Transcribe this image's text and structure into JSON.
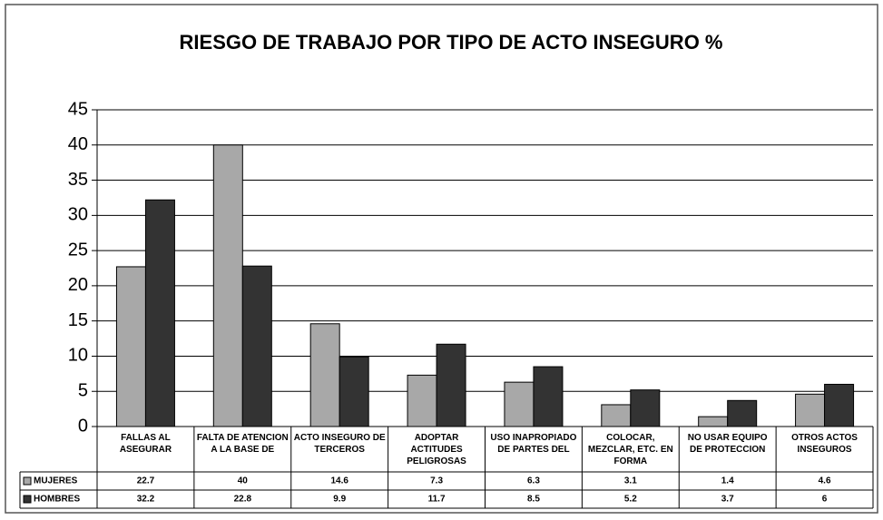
{
  "chart_data": {
    "type": "bar",
    "title": "RIESGO DE TRABAJO POR TIPO DE  ACTO INSEGURO  %",
    "categories": [
      "FALLAS AL ASEGURAR",
      "FALTA DE ATENCION A LA BASE DE",
      "ACTO INSEGURO DE TERCEROS",
      "ADOPTAR ACTITUDES PELIGROSAS",
      "USO INAPROPIADO DE PARTES DEL",
      "COLOCAR, MEZCLAR, ETC. EN FORMA",
      "NO USAR EQUIPO DE PROTECCION",
      "OTROS ACTOS INSEGUROS"
    ],
    "series": [
      {
        "name": "MUJERES",
        "color": "#a8a8a8",
        "values": [
          22.7,
          40,
          14.6,
          7.3,
          6.3,
          3.1,
          1.4,
          4.6
        ]
      },
      {
        "name": "HOMBRES",
        "color": "#333333",
        "values": [
          32.2,
          22.8,
          9.9,
          11.7,
          8.5,
          5.2,
          3.7,
          6
        ]
      }
    ],
    "ylim": [
      0,
      45
    ],
    "yticks": [
      0,
      5,
      10,
      15,
      20,
      25,
      30,
      35,
      40,
      45
    ],
    "grid": true
  }
}
